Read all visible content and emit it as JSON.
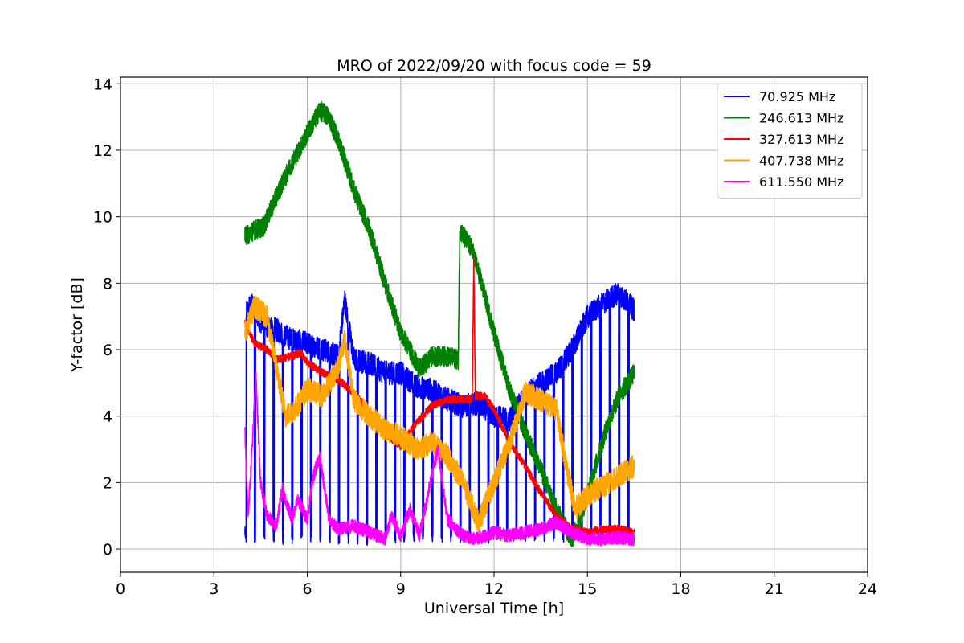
{
  "chart_data": {
    "type": "line",
    "title": "MRO of 2022/09/20 with focus code = 59",
    "xlabel": "Universal Time [h]",
    "ylabel": "Y-factor [dB]",
    "xlim": [
      0,
      24
    ],
    "ylim": [
      -0.7,
      14.2
    ],
    "xticks": [
      0,
      3,
      6,
      9,
      12,
      15,
      18,
      21,
      24
    ],
    "yticks": [
      0,
      2,
      4,
      6,
      8,
      10,
      12,
      14
    ],
    "grid": true,
    "legend_position": "top-right",
    "series": [
      {
        "name": " 70.925 MHz",
        "color": "#0000ff",
        "noise": 0.35,
        "dip_period": 0.3,
        "dip_depth": 0.12,
        "x": [
          4.0,
          4.2,
          4.5,
          5.0,
          5.5,
          6.0,
          6.5,
          7.0,
          7.2,
          7.5,
          8.0,
          8.5,
          9.0,
          9.5,
          10.0,
          10.5,
          11.0,
          11.5,
          12.0,
          12.5,
          13.0,
          13.5,
          14.0,
          14.5,
          15.0,
          15.5,
          16.0,
          16.5
        ],
        "y": [
          7.0,
          7.4,
          6.8,
          6.6,
          6.3,
          6.2,
          6.0,
          5.8,
          7.5,
          5.7,
          5.6,
          5.3,
          5.3,
          4.9,
          4.8,
          4.5,
          4.3,
          4.4,
          4.0,
          3.9,
          4.6,
          5.0,
          5.3,
          6.0,
          7.0,
          7.4,
          7.7,
          7.2
        ]
      },
      {
        "name": "246.613 MHz",
        "color": "#008000",
        "noise": 0.3,
        "x": [
          4.0,
          4.3,
          4.6,
          5.0,
          5.5,
          6.0,
          6.4,
          6.7,
          7.0,
          7.5,
          8.0,
          8.5,
          9.0,
          9.3,
          9.6,
          10.0,
          10.5,
          10.85,
          10.9,
          11.3,
          11.6,
          12.0,
          12.5,
          13.0,
          13.5,
          14.0,
          14.5,
          14.8,
          15.2,
          15.6,
          16.0,
          16.5
        ],
        "y": [
          9.4,
          9.6,
          9.7,
          10.6,
          11.6,
          12.5,
          13.2,
          13.0,
          12.3,
          10.8,
          9.6,
          8.0,
          6.5,
          6.0,
          5.4,
          5.8,
          5.8,
          5.7,
          9.6,
          9.0,
          8.0,
          6.5,
          4.8,
          3.5,
          2.4,
          1.2,
          0.3,
          1.0,
          2.3,
          3.6,
          4.6,
          5.3
        ]
      },
      {
        "name": "327.613 MHz",
        "color": "#ff0000",
        "noise": 0.12,
        "x": [
          4.0,
          4.3,
          4.7,
          5.0,
          5.5,
          5.8,
          6.0,
          6.5,
          7.0,
          7.5,
          8.0,
          8.5,
          9.0,
          9.5,
          10.0,
          10.5,
          11.0,
          11.3,
          11.35,
          11.4,
          11.7,
          12.0,
          12.5,
          13.0,
          13.5,
          14.0,
          14.5,
          15.0,
          15.5,
          16.0,
          16.5
        ],
        "y": [
          6.8,
          6.2,
          6.0,
          5.7,
          5.8,
          5.9,
          5.6,
          5.3,
          5.1,
          4.7,
          4.1,
          3.5,
          3.1,
          3.8,
          4.3,
          4.5,
          4.5,
          4.5,
          8.7,
          4.6,
          4.6,
          4.2,
          3.2,
          2.5,
          1.7,
          1.0,
          0.6,
          0.5,
          0.6,
          0.6,
          0.5
        ]
      },
      {
        "name": "407.738 MHz",
        "color": "#ffa500",
        "noise": 0.35,
        "x": [
          4.0,
          4.3,
          4.7,
          5.0,
          5.3,
          5.6,
          6.0,
          6.5,
          7.0,
          7.2,
          7.5,
          8.0,
          8.5,
          9.0,
          9.5,
          10.0,
          10.5,
          11.0,
          11.5,
          12.0,
          12.5,
          13.0,
          13.5,
          14.0,
          14.3,
          14.6,
          15.0,
          15.5,
          16.0,
          16.5
        ],
        "y": [
          6.5,
          7.3,
          7.0,
          5.5,
          4.0,
          4.2,
          4.8,
          4.6,
          5.5,
          6.3,
          4.5,
          4.0,
          3.6,
          3.4,
          3.0,
          3.2,
          2.8,
          2.0,
          0.8,
          2.0,
          3.2,
          4.7,
          4.5,
          4.2,
          2.6,
          1.2,
          1.6,
          1.9,
          2.2,
          2.5
        ]
      },
      {
        "name": "611.550 MHz",
        "color": "#ff00ff",
        "noise": 0.2,
        "x": [
          4.0,
          4.1,
          4.2,
          4.35,
          4.5,
          4.7,
          5.0,
          5.2,
          5.5,
          5.7,
          6.0,
          6.2,
          6.4,
          6.7,
          7.0,
          7.5,
          8.0,
          8.5,
          8.7,
          9.0,
          9.3,
          9.6,
          10.0,
          10.2,
          10.5,
          11.0,
          11.5,
          12.0,
          12.5,
          13.0,
          13.5,
          14.0,
          14.5,
          15.0,
          15.5,
          16.0,
          16.5
        ],
        "y": [
          3.5,
          1.0,
          2.6,
          5.2,
          2.0,
          1.0,
          0.7,
          1.8,
          0.9,
          1.5,
          0.9,
          2.2,
          2.8,
          0.9,
          0.6,
          0.7,
          0.5,
          0.3,
          1.0,
          0.4,
          1.2,
          0.4,
          2.2,
          3.0,
          0.9,
          0.4,
          0.3,
          0.5,
          0.4,
          0.5,
          0.6,
          0.8,
          0.5,
          0.3,
          0.3,
          0.35,
          0.3
        ]
      }
    ]
  }
}
